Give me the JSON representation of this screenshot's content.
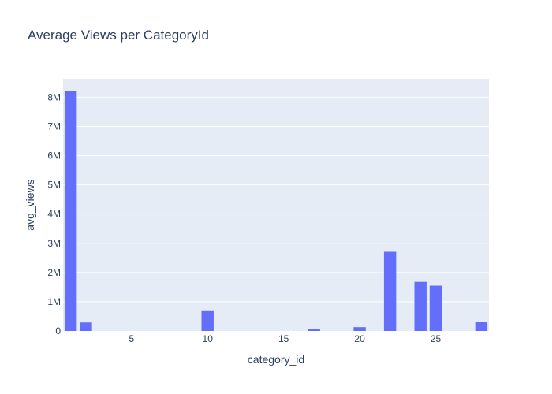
{
  "chart_data": {
    "type": "bar",
    "title": "Average Views per CategoryId",
    "xlabel": "category_id",
    "ylabel": "avg_views",
    "x": [
      1,
      2,
      10,
      17,
      20,
      22,
      24,
      25,
      28
    ],
    "values": [
      8220000,
      290000,
      680000,
      80000,
      130000,
      2710000,
      1680000,
      1550000,
      320000
    ],
    "xlim": [
      0.5,
      28.5
    ],
    "ylim": [
      0,
      8630000
    ],
    "x_ticks": [
      5,
      10,
      15,
      20,
      25
    ],
    "y_ticks": [
      0,
      1000000,
      2000000,
      3000000,
      4000000,
      5000000,
      6000000,
      7000000,
      8000000
    ],
    "y_tick_labels": [
      "0",
      "1M",
      "2M",
      "3M",
      "4M",
      "5M",
      "6M",
      "7M",
      "8M"
    ],
    "grid": true,
    "colors": {
      "bar": "#636efa",
      "plot_bg": "#e5ecf6",
      "grid": "#ffffff",
      "text": "#2a3f5f"
    }
  }
}
